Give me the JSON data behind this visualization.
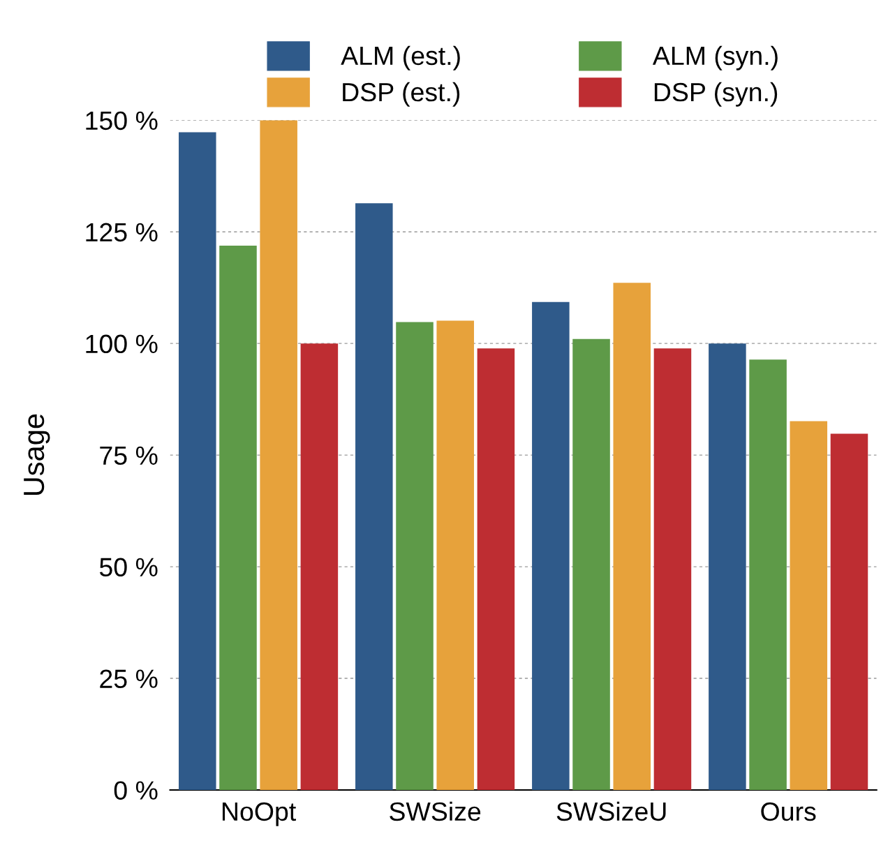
{
  "chart_data": {
    "type": "bar",
    "ylabel": "Usage",
    "categories": [
      "NoOpt",
      "SWSize",
      "SWSizeU",
      "Ours"
    ],
    "series": [
      {
        "name": "ALM (est.)",
        "color": "#2f5a8a",
        "values": [
          147.3,
          131.4,
          109.3,
          100
        ]
      },
      {
        "name": "ALM (syn.)",
        "color": "#5e9a48",
        "values": [
          121.9,
          104.8,
          101.0,
          96.4
        ]
      },
      {
        "name": "DSP (est.)",
        "color": "#e7a23b",
        "values": [
          150,
          105.1,
          113.6,
          82.6
        ]
      },
      {
        "name": "DSP (syn.)",
        "color": "#be2d32",
        "values": [
          100,
          98.9,
          98.9,
          79.8
        ]
      }
    ],
    "ylim": [
      0,
      150
    ],
    "yticks": [
      {
        "value": 0,
        "label": "0 %"
      },
      {
        "value": 25,
        "label": "25 %"
      },
      {
        "value": 50,
        "label": "50 %"
      },
      {
        "value": 75,
        "label": "75 %"
      },
      {
        "value": 100,
        "label": "100 %"
      },
      {
        "value": 125,
        "label": "125 %"
      },
      {
        "value": 150,
        "label": "150 %"
      }
    ],
    "grid": "y",
    "legend": "top"
  }
}
